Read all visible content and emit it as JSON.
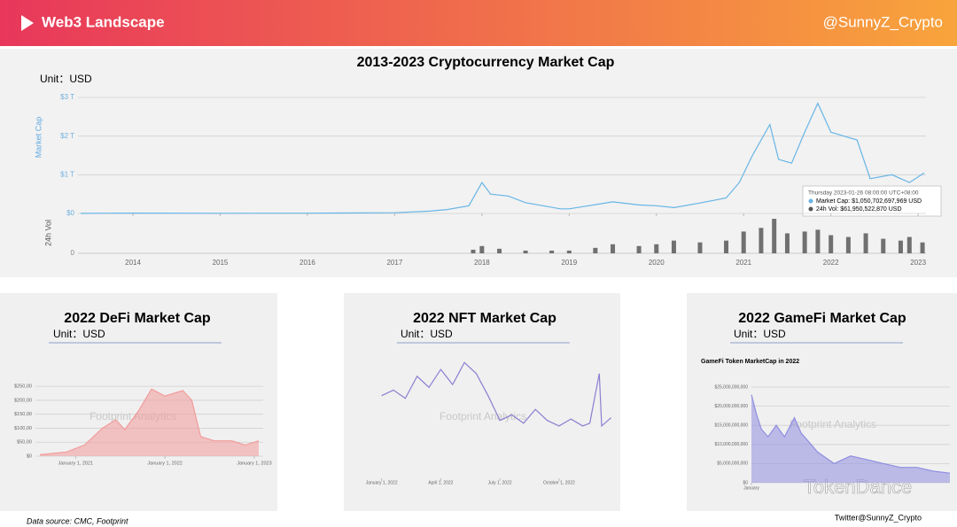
{
  "header": {
    "title": "Web3 Landscape",
    "handle": "@SunnyZ_Crypto"
  },
  "footer": {
    "source": "Data source: CMC, Footprint",
    "credit": "Twitter@SunnyZ_Crypto"
  },
  "watermarks": {
    "footprint": "Footprint Analytics",
    "brand": "TokenDance"
  },
  "chart_data": [
    {
      "type": "line",
      "title": "2013-2023 Cryptocurrency Market Cap",
      "unit": "Unit：USD",
      "y_label": "Market Cap",
      "annotations": [
        "Thursday 2023-01-26 08:00:00 UTC+08:00",
        "Market Cap: $1,050,702,697,969 USD",
        "24h Vol: $61,950,522,870 USD"
      ],
      "x": [
        2013.4,
        2014.0,
        2015.0,
        2016.0,
        2017.0,
        2017.4,
        2017.6,
        2017.85,
        2018.0,
        2018.1,
        2018.3,
        2018.5,
        2018.9,
        2019.0,
        2019.5,
        2019.8,
        2020.0,
        2020.2,
        2020.5,
        2020.8,
        2020.95,
        2021.1,
        2021.3,
        2021.4,
        2021.55,
        2021.7,
        2021.85,
        2022.0,
        2022.3,
        2022.45,
        2022.7,
        2022.9,
        2023.07
      ],
      "series": [
        {
          "name": "Market Cap",
          "color": "#67b5e6",
          "values": [
            2000000000.0,
            10000000000.0,
            5000000000.0,
            7000000000.0,
            18000000000.0,
            60000000000.0,
            100000000000.0,
            200000000000.0,
            800000000000.0,
            500000000000.0,
            450000000000.0,
            280000000000.0,
            120000000000.0,
            120000000000.0,
            300000000000.0,
            220000000000.0,
            200000000000.0,
            150000000000.0,
            270000000000.0,
            400000000000.0,
            800000000000.0,
            1500000000000.0,
            2300000000000.0,
            1400000000000.0,
            1300000000000.0,
            2100000000000.0,
            2850000000000.0,
            2100000000000.0,
            1900000000000.0,
            900000000000.0,
            1000000000000.0,
            800000000000.0,
            1050000000000.0
          ]
        }
      ],
      "xlim": [
        2013.37,
        2023.09
      ],
      "xticks": [
        2014,
        2015,
        2016,
        2017,
        2018,
        2019,
        2020,
        2021,
        2022,
        2023
      ],
      "ylim": [
        0,
        3000000000000.0
      ],
      "yticks": [
        {
          "value": 0,
          "label": "$0"
        },
        {
          "value": 1000000000000.0,
          "label": "$1 T"
        },
        {
          "value": 2000000000000.0,
          "label": "$2 T"
        },
        {
          "value": 3000000000000.0,
          "label": "$3 T"
        }
      ],
      "grid": true
    },
    {
      "type": "bar",
      "y_label": "24h Vol",
      "color": "#707070",
      "x": [
        2017.9,
        2018.0,
        2018.2,
        2018.5,
        2018.8,
        2019.0,
        2019.3,
        2019.5,
        2019.8,
        2020.0,
        2020.2,
        2020.5,
        2020.8,
        2021.0,
        2021.2,
        2021.35,
        2021.5,
        2021.7,
        2021.85,
        2022.0,
        2022.2,
        2022.4,
        2022.6,
        2022.8,
        2022.9,
        2023.05
      ],
      "values": [
        20000000000.0,
        40000000000.0,
        25000000000.0,
        15000000000.0,
        15000000000.0,
        15000000000.0,
        30000000000.0,
        50000000000.0,
        40000000000.0,
        50000000000.0,
        70000000000.0,
        60000000000.0,
        70000000000.0,
        120000000000.0,
        140000000000.0,
        190000000000.0,
        110000000000.0,
        120000000000.0,
        130000000000.0,
        100000000000.0,
        90000000000.0,
        110000000000.0,
        80000000000.0,
        70000000000.0,
        90000000000.0,
        60000000000.0
      ],
      "xlim": [
        2013.37,
        2023.09
      ],
      "ylim": [
        0,
        200000000000.0
      ],
      "yticks": [
        0
      ]
    },
    {
      "type": "area",
      "title": "2022 DeFi Market Cap",
      "unit": "Unit：USD",
      "color": "#f29b9b",
      "x": [
        2020.6,
        2020.9,
        2021.1,
        2021.3,
        2021.45,
        2021.55,
        2021.7,
        2021.85,
        2022.0,
        2022.2,
        2022.3,
        2022.4,
        2022.55,
        2022.75,
        2022.9,
        2023.05
      ],
      "values": [
        5,
        15,
        40,
        100,
        130,
        95,
        160,
        240,
        215,
        235,
        200,
        70,
        55,
        55,
        40,
        55
      ],
      "xlim": [
        2020.55,
        2023.1
      ],
      "xticks": [
        {
          "value": 2021,
          "label": "January 1, 2021"
        },
        {
          "value": 2022,
          "label": "January 1, 2022"
        },
        {
          "value": 2023,
          "label": "January 1, 2023"
        }
      ],
      "ylim": [
        0,
        260
      ],
      "yticks": [
        {
          "value": 0,
          "label": "$0"
        },
        {
          "value": 50,
          "label": "$50,00"
        },
        {
          "value": 100,
          "label": "$100,00"
        },
        {
          "value": 150,
          "label": "$150,00"
        },
        {
          "value": 200,
          "label": "$200,00"
        },
        {
          "value": 250,
          "label": "$250,00"
        }
      ],
      "grid": true
    },
    {
      "type": "line",
      "title": "2022 NFT Market Cap",
      "unit": "Unit：USD",
      "color": "#8a7fd0",
      "x": [
        2022.0,
        2022.05,
        2022.1,
        2022.15,
        2022.2,
        2022.25,
        2022.3,
        2022.35,
        2022.4,
        2022.45,
        2022.5,
        2022.55,
        2022.6,
        2022.65,
        2022.7,
        2022.75,
        2022.8,
        2022.85,
        2022.88,
        2022.92,
        2022.93,
        2022.97
      ],
      "values": [
        300,
        320,
        290,
        370,
        330,
        395,
        340,
        420,
        380,
        300,
        210,
        230,
        200,
        250,
        210,
        190,
        215,
        190,
        200,
        380,
        190,
        220
      ],
      "xlim": [
        2021.99,
        2022.99
      ],
      "xticks": [
        {
          "value": 2022.0,
          "label": "January 1, 2022"
        },
        {
          "value": 2022.25,
          "label": "April 1, 2022"
        },
        {
          "value": 2022.5,
          "label": "July 1, 2022"
        },
        {
          "value": 2022.75,
          "label": "October 1, 2022"
        }
      ],
      "ylim": [
        0,
        450
      ],
      "grid": false
    },
    {
      "type": "area",
      "title": "2022 GameFi Market Cap",
      "unit": "Unit：USD",
      "subtitle": "GameFi Token MarketCap in 2022",
      "color": "#8f8ee0",
      "x": [
        0,
        0.3,
        0.6,
        1,
        1.5,
        2,
        2.6,
        3,
        4,
        5,
        6,
        7,
        8,
        9,
        10,
        11,
        12
      ],
      "values": [
        23000000000.0,
        18000000000.0,
        14000000000.0,
        12000000000.0,
        15000000000.0,
        12000000000.0,
        17000000000.0,
        13000000000.0,
        8000000000.0,
        5000000000.0,
        7000000000.0,
        6000000000.0,
        5000000000.0,
        4000000000.0,
        4000000000.0,
        3000000000.0,
        2500000000.0
      ],
      "xlim": [
        0,
        12
      ],
      "xticks": [
        {
          "value": 0,
          "label": "January"
        }
      ],
      "ylim": [
        0,
        25000000000.0
      ],
      "yticks": [
        {
          "value": 0,
          "label": "$0"
        },
        {
          "value": 5000000000.0,
          "label": "$5,000,000,000"
        },
        {
          "value": 10000000000.0,
          "label": "$10,000,000,000"
        },
        {
          "value": 15000000000.0,
          "label": "$15,000,000,000"
        },
        {
          "value": 20000000000.0,
          "label": "$20,000,000,000"
        },
        {
          "value": 25000000000.0,
          "label": "$25,000,000,000"
        }
      ],
      "grid": true
    }
  ]
}
